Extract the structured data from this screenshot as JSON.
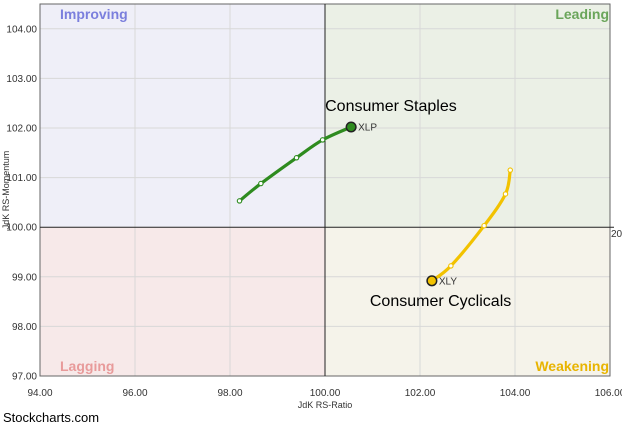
{
  "chart_data": {
    "type": "scatter",
    "title": "",
    "xlabel": "JdK RS-Ratio",
    "ylabel": "JdK RS-Momentum",
    "xlim": [
      94,
      106
    ],
    "ylim": [
      97,
      104.5
    ],
    "center": [
      100,
      100
    ],
    "x_ticks": [
      "94.00",
      "96.00",
      "98.00",
      "100.00",
      "102.00",
      "104.00",
      "106.00"
    ],
    "y_ticks": [
      "97.00",
      "98.00",
      "99.00",
      "100.00",
      "101.00",
      "102.00",
      "103.00",
      "104.00"
    ],
    "center_label": "20",
    "grid": true,
    "quadrants": [
      {
        "name": "Improving",
        "position": "top-left",
        "color": "#7b7fdd",
        "fill": "#efeff8"
      },
      {
        "name": "Leading",
        "position": "top-right",
        "color": "#6aa55a",
        "fill": "#ebf0e6"
      },
      {
        "name": "Lagging",
        "position": "bottom-left",
        "color": "#e89a9a",
        "fill": "#f7e9e9"
      },
      {
        "name": "Weakening",
        "position": "bottom-right",
        "color": "#e8b400",
        "fill": "#f5f3ea"
      }
    ],
    "series": [
      {
        "name": "XLP",
        "color": "#2e8b1f",
        "head_color": "#2e8b1f",
        "points": [
          {
            "x": 98.2,
            "y": 100.53
          },
          {
            "x": 98.65,
            "y": 100.88
          },
          {
            "x": 99.4,
            "y": 101.4
          },
          {
            "x": 99.95,
            "y": 101.76
          },
          {
            "x": 100.55,
            "y": 102.02
          }
        ],
        "annotation": "Consumer Staples"
      },
      {
        "name": "XLY",
        "color": "#f2c200",
        "head_color": "#f2c200",
        "points": [
          {
            "x": 103.9,
            "y": 101.15
          },
          {
            "x": 103.8,
            "y": 100.67
          },
          {
            "x": 103.35,
            "y": 100.03
          },
          {
            "x": 102.65,
            "y": 99.22
          },
          {
            "x": 102.25,
            "y": 98.92
          }
        ],
        "annotation": "Consumer Cyclicals"
      }
    ]
  },
  "footer": {
    "credit": "Stockcharts.com"
  }
}
